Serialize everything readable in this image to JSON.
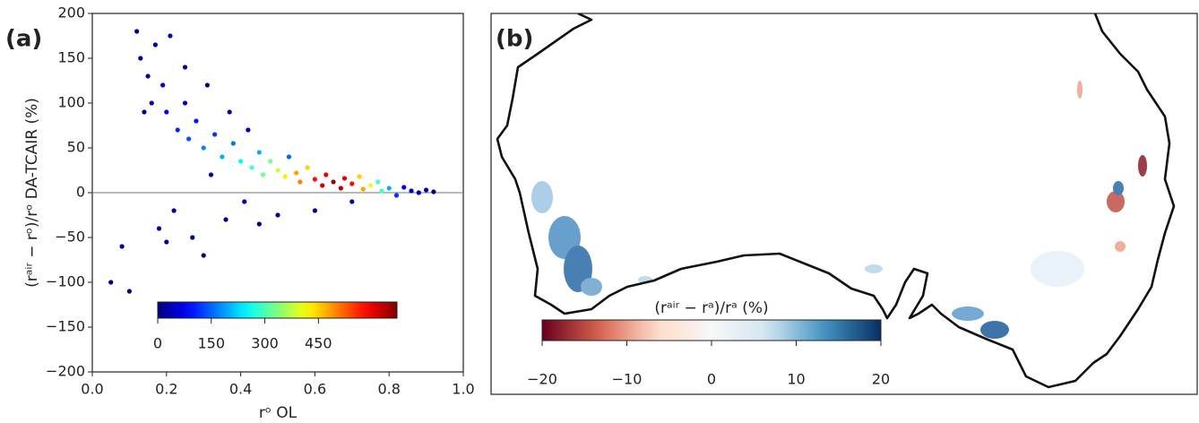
{
  "chart_data": [
    {
      "type": "scatter",
      "panel_label": "(a)",
      "xlabel": "rᵒ OL",
      "ylabel": "(rᵃⁱʳ − rᵒ)/rᵒ DA-TCAIR (%)",
      "xlim": [
        0,
        1
      ],
      "ylim": [
        -200,
        200
      ],
      "xticks": [
        {
          "value": 0,
          "label": "0.0"
        },
        0.2,
        0.4,
        0.6,
        0.8,
        {
          "value": 1,
          "label": "1.0"
        }
      ],
      "yticks": [
        {
          "value": -200,
          "label": "−200"
        },
        {
          "value": -150,
          "label": "−150"
        },
        {
          "value": -100,
          "label": "−100"
        },
        {
          "value": -50,
          "label": "−50"
        },
        0,
        50,
        100,
        150,
        200
      ],
      "hline": 0,
      "colormap": "jet",
      "clim": [
        0,
        670
      ],
      "cticks": [
        0,
        150,
        300,
        450
      ],
      "x": [
        0.05,
        0.08,
        0.1,
        0.12,
        0.13,
        0.15,
        0.16,
        0.17,
        0.18,
        0.19,
        0.2,
        0.21,
        0.22,
        0.23,
        0.25,
        0.26,
        0.27,
        0.28,
        0.3,
        0.31,
        0.32,
        0.33,
        0.35,
        0.36,
        0.37,
        0.38,
        0.4,
        0.41,
        0.42,
        0.43,
        0.45,
        0.46,
        0.48,
        0.5,
        0.5,
        0.52,
        0.53,
        0.55,
        0.56,
        0.58,
        0.6,
        0.62,
        0.63,
        0.65,
        0.67,
        0.68,
        0.7,
        0.72,
        0.73,
        0.75,
        0.77,
        0.78,
        0.8,
        0.82,
        0.84,
        0.86,
        0.88,
        0.9,
        0.92,
        0.6,
        0.45,
        0.7,
        0.25,
        0.14,
        0.3,
        0.2
      ],
      "y": [
        -100,
        -60,
        -110,
        180,
        150,
        130,
        100,
        165,
        -40,
        120,
        90,
        175,
        -20,
        70,
        100,
        60,
        -50,
        80,
        50,
        120,
        20,
        65,
        40,
        -30,
        90,
        55,
        35,
        -10,
        70,
        28,
        45,
        20,
        35,
        25,
        -25,
        18,
        40,
        22,
        12,
        28,
        15,
        8,
        20,
        12,
        5,
        16,
        10,
        18,
        4,
        8,
        12,
        2,
        5,
        -3,
        6,
        2,
        0,
        3,
        1,
        -20,
        -35,
        -10,
        140,
        90,
        -70,
        -55
      ],
      "density": [
        5,
        5,
        5,
        10,
        20,
        40,
        50,
        20,
        10,
        60,
        80,
        15,
        15,
        110,
        60,
        140,
        10,
        100,
        170,
        20,
        40,
        120,
        200,
        15,
        30,
        160,
        250,
        30,
        40,
        300,
        200,
        320,
        330,
        380,
        20,
        430,
        150,
        480,
        500,
        450,
        580,
        620,
        600,
        650,
        630,
        600,
        580,
        450,
        480,
        400,
        300,
        300,
        200,
        120,
        80,
        40,
        20,
        10,
        5,
        20,
        10,
        30,
        20,
        15,
        5,
        5
      ]
    },
    {
      "type": "map",
      "panel_label": "(b)",
      "colorbar_label": "(rᵃⁱʳ − rᵃ)/rᵃ (%)",
      "colormap": "RdBu",
      "clim": [
        -20,
        20
      ],
      "cticks": [
        {
          "value": -20,
          "label": "−20"
        },
        {
          "value": -10,
          "label": "−10"
        },
        0,
        10,
        20
      ]
    }
  ]
}
